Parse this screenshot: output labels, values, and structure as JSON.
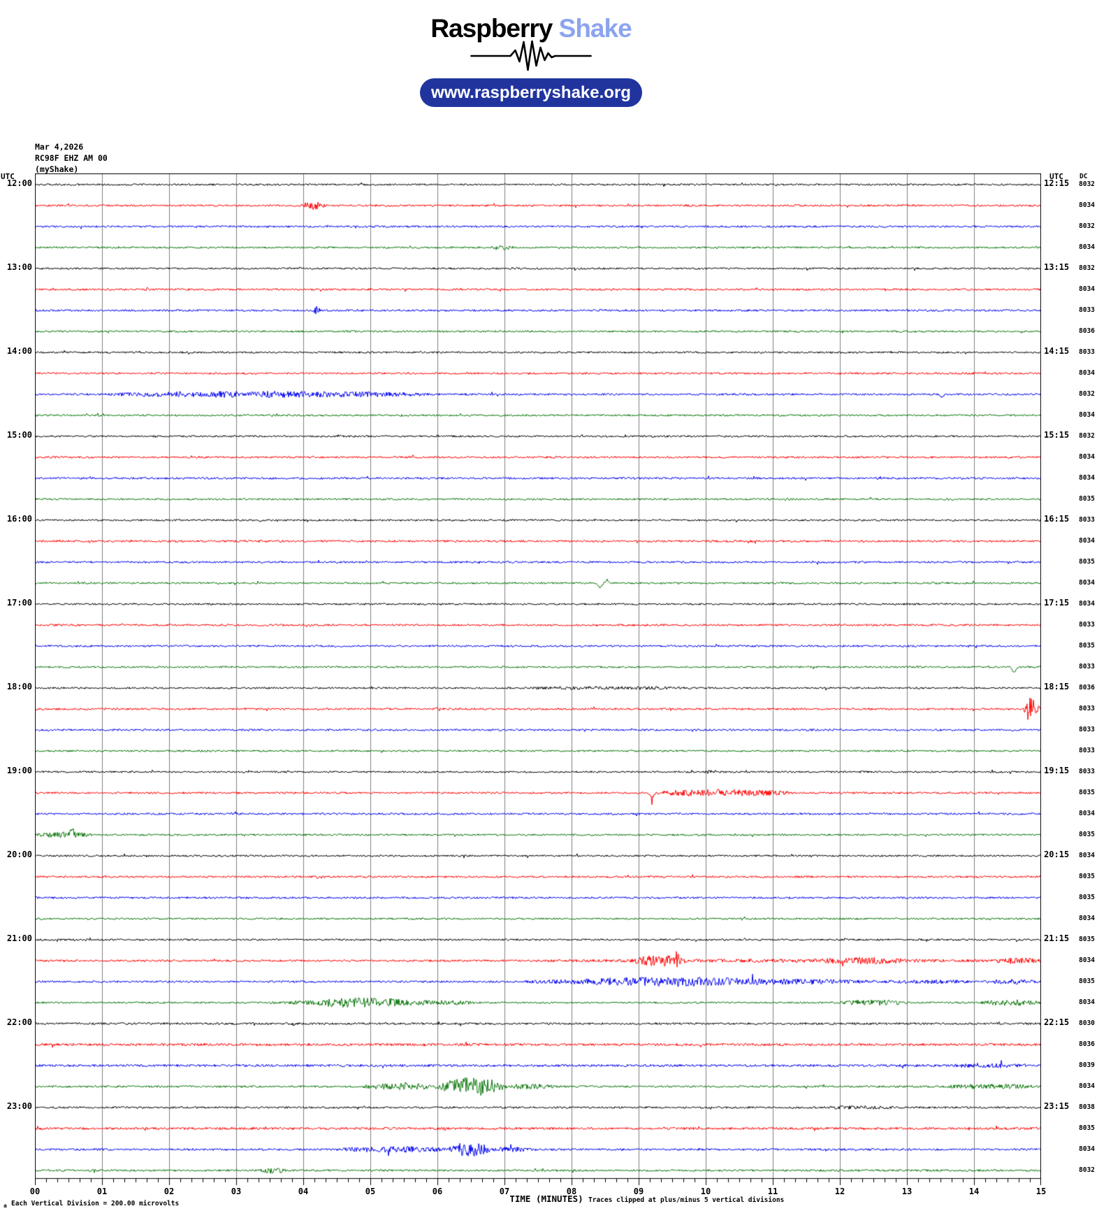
{
  "logo": {
    "brand_black": "Raspberry",
    "brand_blue": "Shake",
    "url": "www.raspberryshake.org",
    "pill_color": "#21349e",
    "brand_blue_color": "#8ca4ee"
  },
  "header": {
    "date": "Mar 4,2026",
    "station": "RC98F EHZ AM 00",
    "network": "(myShake)"
  },
  "axis": {
    "utc_left": "UTC",
    "utc_right": "UTC",
    "dc": "DC"
  },
  "footer": {
    "corner_mark": "a",
    "scale_note": "Each Vertical Division =  200.00 microvolts",
    "xaxis_title": "TIME (MINUTES)",
    "clip_note": "Traces clipped at plus/minus 5 vertical divisions"
  },
  "chart_data": {
    "type": "line",
    "subtype": "helicorder",
    "title": "RC98F EHZ AM 00 helicorder, Mar 4,2026, 12:00-24:00 UTC",
    "xlabel": "TIME (MINUTES)",
    "x_range_minutes": [
      0,
      15
    ],
    "x_tick_labels": [
      "00",
      "01",
      "02",
      "03",
      "04",
      "05",
      "06",
      "07",
      "08",
      "09",
      "10",
      "11",
      "12",
      "13",
      "14",
      "15"
    ],
    "minor_ticks_per_minute": 6,
    "grid": true,
    "row_minutes": 15,
    "colors": {
      "black": "#000000",
      "red": "#ff0000",
      "blue": "#0000ee",
      "green": "#077407",
      "grid": "#7f7f7f"
    },
    "row_cycle_colors": [
      "black",
      "red",
      "blue",
      "green"
    ],
    "rows": [
      {
        "left": "12:00",
        "right": "12:15",
        "color": "black",
        "dc": "8032",
        "base": 1.3,
        "events": []
      },
      {
        "color": "red",
        "dc": "8034",
        "base": 1.4,
        "events": [
          {
            "k": "b",
            "m0": 3.95,
            "m1": 4.35,
            "a": 4.5
          }
        ]
      },
      {
        "color": "blue",
        "dc": "8032",
        "base": 1.4,
        "events": []
      },
      {
        "color": "green",
        "dc": "8034",
        "base": 1.3,
        "events": [
          {
            "k": "b",
            "m0": 6.8,
            "m1": 7.1,
            "a": 2.5
          }
        ]
      },
      {
        "left": "13:00",
        "right": "13:15",
        "color": "black",
        "dc": "8032",
        "base": 1.3,
        "events": []
      },
      {
        "color": "red",
        "dc": "8034",
        "base": 1.4,
        "events": [
          {
            "k": "s",
            "m": 1.68,
            "a": 3,
            "w": 0.05
          }
        ]
      },
      {
        "color": "blue",
        "dc": "8033",
        "base": 1.4,
        "events": [
          {
            "k": "s",
            "m": 4.2,
            "a": 6,
            "w": 0.06
          }
        ]
      },
      {
        "color": "green",
        "dc": "8036",
        "base": 1.3,
        "events": []
      },
      {
        "left": "14:00",
        "right": "14:15",
        "color": "black",
        "dc": "8033",
        "base": 1.3,
        "events": []
      },
      {
        "color": "red",
        "dc": "8034",
        "base": 1.4,
        "events": []
      },
      {
        "color": "blue",
        "dc": "8032",
        "base": 1.4,
        "events": [
          {
            "k": "b",
            "m0": 1.05,
            "m1": 5.9,
            "a": 3.4
          },
          {
            "k": "s",
            "m": 13.52,
            "a": 5,
            "w": 0.05,
            "d": -1
          }
        ]
      },
      {
        "color": "green",
        "dc": "8034",
        "base": 1.3,
        "events": []
      },
      {
        "left": "15:00",
        "right": "15:15",
        "color": "black",
        "dc": "8032",
        "base": 1.3,
        "events": [
          {
            "k": "s",
            "m": 4.55,
            "a": 2.5,
            "w": 0.05
          }
        ]
      },
      {
        "color": "red",
        "dc": "8034",
        "base": 1.4,
        "events": []
      },
      {
        "color": "blue",
        "dc": "8034",
        "base": 1.4,
        "events": []
      },
      {
        "color": "green",
        "dc": "8035",
        "base": 1.3,
        "events": []
      },
      {
        "left": "16:00",
        "right": "16:15",
        "color": "black",
        "dc": "8033",
        "base": 1.3,
        "events": []
      },
      {
        "color": "red",
        "dc": "8034",
        "base": 1.5,
        "events": []
      },
      {
        "color": "blue",
        "dc": "8035",
        "base": 1.4,
        "events": []
      },
      {
        "color": "green",
        "dc": "8034",
        "base": 1.3,
        "events": [
          {
            "k": "s",
            "m": 8.42,
            "a": 7,
            "w": 0.06,
            "d": -1
          },
          {
            "k": "s",
            "m": 8.53,
            "a": 5,
            "w": 0.05,
            "d": 1
          }
        ]
      },
      {
        "left": "17:00",
        "right": "17:15",
        "color": "black",
        "dc": "8034",
        "base": 1.3,
        "events": []
      },
      {
        "color": "red",
        "dc": "8033",
        "base": 1.4,
        "events": []
      },
      {
        "color": "blue",
        "dc": "8035",
        "base": 1.4,
        "events": []
      },
      {
        "color": "green",
        "dc": "8033",
        "base": 1.3,
        "events": [
          {
            "k": "s",
            "m": 14.6,
            "a": 8,
            "w": 0.06,
            "d": -1
          }
        ]
      },
      {
        "left": "18:00",
        "right": "18:15",
        "color": "black",
        "dc": "8036",
        "base": 1.3,
        "events": [
          {
            "k": "b",
            "m0": 7.3,
            "m1": 9.8,
            "a": 1.2
          }
        ]
      },
      {
        "color": "red",
        "dc": "8033",
        "base": 1.4,
        "events": [
          {
            "k": "b",
            "m0": 14.7,
            "m1": 15.0,
            "a": 6
          },
          {
            "k": "s",
            "m": 14.84,
            "a": 15,
            "w": 0.1
          }
        ]
      },
      {
        "color": "blue",
        "dc": "8033",
        "base": 1.4,
        "events": []
      },
      {
        "color": "green",
        "dc": "8033",
        "base": 1.3,
        "events": []
      },
      {
        "left": "19:00",
        "right": "19:15",
        "color": "black",
        "dc": "8033",
        "base": 1.3,
        "events": [
          {
            "k": "s",
            "m": 10.05,
            "a": 2,
            "w": 0.08
          }
        ]
      },
      {
        "color": "red",
        "dc": "8035",
        "base": 1.4,
        "events": [
          {
            "k": "s",
            "m": 9.2,
            "a": 7,
            "w": 0.06,
            "d": -1
          },
          {
            "k": "b",
            "m0": 9.2,
            "m1": 11.3,
            "a": 3.8
          }
        ]
      },
      {
        "color": "blue",
        "dc": "8034",
        "base": 1.4,
        "events": []
      },
      {
        "color": "green",
        "dc": "8035",
        "base": 1.3,
        "events": [
          {
            "k": "b",
            "m0": 0.0,
            "m1": 0.85,
            "a": 3
          },
          {
            "k": "s",
            "m": 0.55,
            "a": 9,
            "w": 0.05,
            "d": 1
          }
        ]
      },
      {
        "left": "20:00",
        "right": "20:15",
        "color": "black",
        "dc": "8034",
        "base": 1.3,
        "events": []
      },
      {
        "color": "red",
        "dc": "8035",
        "base": 1.4,
        "events": []
      },
      {
        "color": "blue",
        "dc": "8035",
        "base": 1.4,
        "events": []
      },
      {
        "color": "green",
        "dc": "8034",
        "base": 1.3,
        "events": []
      },
      {
        "left": "21:00",
        "right": "21:15",
        "color": "black",
        "dc": "8035",
        "base": 1.3,
        "events": []
      },
      {
        "color": "red",
        "dc": "8034",
        "base": 1.4,
        "events": [
          {
            "k": "b",
            "m0": 7.4,
            "m1": 15.0,
            "a": 1.2
          },
          {
            "k": "b",
            "m0": 8.9,
            "m1": 9.7,
            "a": 6
          },
          {
            "k": "s",
            "m": 9.57,
            "a": 9,
            "w": 0.04
          },
          {
            "k": "b",
            "m0": 11.7,
            "m1": 13.0,
            "a": 2.5
          },
          {
            "k": "b",
            "m0": 14.3,
            "m1": 15.0,
            "a": 3
          }
        ]
      },
      {
        "color": "blue",
        "dc": "8035",
        "base": 1.4,
        "events": [
          {
            "k": "b",
            "m0": 7.3,
            "m1": 12.6,
            "a": 3.6
          },
          {
            "k": "b",
            "m0": 8.2,
            "m1": 10.6,
            "a": 2
          },
          {
            "k": "b",
            "m0": 12.6,
            "m1": 14.0,
            "a": 1.6
          },
          {
            "k": "b",
            "m0": 14.1,
            "m1": 15.0,
            "a": 2.4
          }
        ]
      },
      {
        "color": "green",
        "dc": "8034",
        "base": 1.3,
        "events": [
          {
            "k": "b",
            "m0": 3.5,
            "m1": 6.7,
            "a": 3
          },
          {
            "k": "b",
            "m0": 4.2,
            "m1": 5.5,
            "a": 3
          },
          {
            "k": "b",
            "m0": 12.0,
            "m1": 13.0,
            "a": 3
          },
          {
            "k": "b",
            "m0": 14.1,
            "m1": 15.0,
            "a": 3.2
          }
        ]
      },
      {
        "left": "22:00",
        "right": "22:15",
        "color": "black",
        "dc": "8030",
        "base": 1.5,
        "events": [
          {
            "k": "s",
            "m": 3.87,
            "a": 2.5,
            "w": 0.05
          }
        ]
      },
      {
        "color": "red",
        "dc": "8036",
        "base": 1.8,
        "events": []
      },
      {
        "color": "blue",
        "dc": "8039",
        "base": 1.7,
        "events": [
          {
            "k": "b",
            "m0": 13.7,
            "m1": 14.7,
            "a": 2
          }
        ]
      },
      {
        "color": "green",
        "dc": "8034",
        "base": 1.4,
        "events": [
          {
            "k": "b",
            "m0": 4.85,
            "m1": 6.15,
            "a": 3.5
          },
          {
            "k": "b",
            "m0": 6.05,
            "m1": 7.0,
            "a": 12
          },
          {
            "k": "b",
            "m0": 6.95,
            "m1": 7.75,
            "a": 2.5
          },
          {
            "k": "b",
            "m0": 13.5,
            "m1": 15.0,
            "a": 2.2
          }
        ]
      },
      {
        "left": "23:00",
        "right": "23:15",
        "color": "black",
        "dc": "8038",
        "base": 1.4,
        "events": [
          {
            "k": "b",
            "m0": 11.7,
            "m1": 12.8,
            "a": 1.3
          }
        ]
      },
      {
        "color": "red",
        "dc": "8035",
        "base": 1.7,
        "events": []
      },
      {
        "color": "blue",
        "dc": "8034",
        "base": 1.5,
        "events": [
          {
            "k": "b",
            "m0": 4.5,
            "m1": 6.2,
            "a": 3
          },
          {
            "k": "b",
            "m0": 6.15,
            "m1": 6.8,
            "a": 9
          },
          {
            "k": "b",
            "m0": 6.8,
            "m1": 7.4,
            "a": 2.2
          }
        ]
      },
      {
        "color": "green",
        "dc": "8032",
        "base": 1.4,
        "events": [
          {
            "k": "b",
            "m0": 3.35,
            "m1": 3.75,
            "a": 3
          }
        ]
      }
    ]
  }
}
